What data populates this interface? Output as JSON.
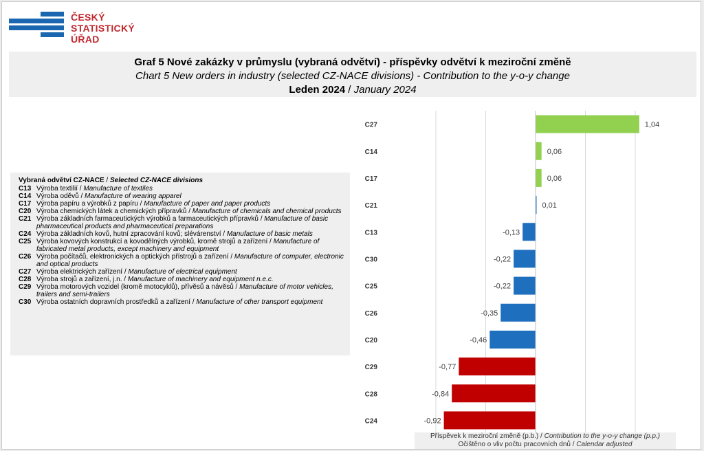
{
  "logo": {
    "line1": "ČESKÝ",
    "line2": "STATISTICKÝ",
    "line3": "ÚŘAD",
    "bar_color": "#1a66b0"
  },
  "title": {
    "line1": "Graf 5 Nové zakázky v průmyslu (vybraná odvětví) - příspěvky odvětví k meziroční změně",
    "line2": "Chart 5 New orders in industry (selected CZ-NACE divisions) - Contribution to the y-o-y change",
    "line3_cz": "Leden 2024",
    "line3_sep": " / ",
    "line3_en": "January 2024"
  },
  "legend": {
    "title_cz": "Vybraná odvětví CZ-NACE",
    "title_sep": " / ",
    "title_en": "Selected CZ-NACE divisions",
    "items": [
      {
        "code": "C13",
        "cz": "Výroba textilií / ",
        "en": "Manufacture of textiles"
      },
      {
        "code": "C14",
        "cz": "Výroba oděvů / ",
        "en": "Manufacture of wearing apparel"
      },
      {
        "code": "C17",
        "cz": "Výroba papíru a výrobků z papíru / ",
        "en": "Manufacture of paper and paper products"
      },
      {
        "code": "C20",
        "cz": "Výroba chemických látek a chemických přípravků / ",
        "en": "Manufacture of chemicals and chemical products"
      },
      {
        "code": "C21",
        "cz": "Výroba základních farmaceutických výrobků a farmaceutických přípravků / ",
        "en": "Manufacture of basic pharmaceutical products and pharmaceutical preparations"
      },
      {
        "code": "C24",
        "cz": "Výroba základních kovů, hutní zpracování kovů; slévárenství / ",
        "en": "Manufacture of basic metals"
      },
      {
        "code": "C25",
        "cz": "Výroba kovových konstrukcí a kovodělných výrobků, kromě strojů a zařízení / ",
        "en": "Manufacture of fabricated metal products, except machinery and equipment"
      },
      {
        "code": "C26",
        "cz": "Výroba počítačů, elektronických a optických přístrojů a zařízení / ",
        "en": "Manufacture of computer, electronic and optical products"
      },
      {
        "code": "C27",
        "cz": "Výroba elektrických zařízení / ",
        "en": "Manufacture of electrical equipment"
      },
      {
        "code": "C28",
        "cz": "Výroba strojů a zařízení, j.n. / ",
        "en": "Manufacture of machinery and equipment n.e.c."
      },
      {
        "code": "C29",
        "cz": "Výroba motorových vozidel (kromě motocyklů), přívěsů a návěsů / ",
        "en": "Manufacture of motor vehicles, trailers and semi-trailers"
      },
      {
        "code": "C30",
        "cz": "Výroba ostatních dopravních prostředků a zařízení / ",
        "en": "Manufacture of other transport equipment"
      }
    ]
  },
  "axis_label": {
    "line1_cz": "Příspěvek k meziroční změně (p.b.) / ",
    "line1_en": "Contribution to the y-o-y change (p.p.)",
    "line2_cz": "Očištěno o vliv počtu pracovních dnů / ",
    "line2_en": "Calendar adjusted"
  },
  "chart_data": {
    "type": "bar",
    "orientation": "horizontal",
    "categories": [
      "C27",
      "C14",
      "C17",
      "C21",
      "C13",
      "C30",
      "C25",
      "C26",
      "C20",
      "C29",
      "C28",
      "C24"
    ],
    "values": [
      1.04,
      0.06,
      0.06,
      0.01,
      -0.13,
      -0.22,
      -0.22,
      -0.35,
      -0.46,
      -0.77,
      -0.84,
      -0.92
    ],
    "value_labels": [
      "1,04",
      "0,06",
      "0,06",
      "0,01",
      "-0,13",
      "-0,22",
      "-0,22",
      "-0,35",
      "-0,46",
      "-0,77",
      "-0,84",
      "-0,92"
    ],
    "colors": [
      "#92d050",
      "#92d050",
      "#92d050",
      "#1f6fbf",
      "#1f6fbf",
      "#1f6fbf",
      "#1f6fbf",
      "#1f6fbf",
      "#1f6fbf",
      "#c00000",
      "#c00000",
      "#c00000"
    ],
    "xlim": [
      -1.0,
      1.2
    ],
    "grid_values": [
      -1.0,
      -0.5,
      0.0,
      0.5,
      1.0
    ],
    "grid": true,
    "legend": "left"
  }
}
